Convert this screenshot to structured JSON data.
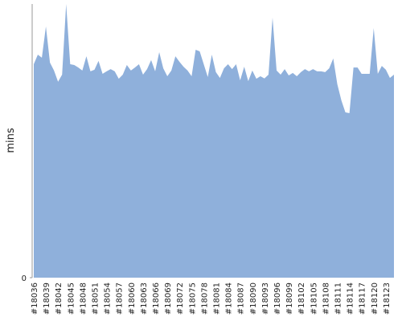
{
  "chart_data": {
    "type": "area",
    "y_label": "mins",
    "color": "#8fb0db",
    "ylim": [
      0,
      100
    ],
    "yticks": [
      0
    ],
    "categories": [
      "#18036",
      null,
      null,
      "#18039",
      null,
      null,
      "#18042",
      null,
      null,
      "#18045",
      null,
      null,
      "#18048",
      null,
      null,
      "#18051",
      null,
      null,
      "#18054",
      null,
      null,
      "#18057",
      null,
      null,
      "#18060",
      null,
      null,
      "#18063",
      null,
      null,
      "#18066",
      null,
      null,
      "#18069",
      null,
      null,
      "#18072",
      null,
      null,
      "#18075",
      null,
      null,
      "#18078",
      null,
      null,
      "#18081",
      null,
      null,
      "#18084",
      null,
      null,
      "#18087",
      null,
      null,
      "#18090",
      null,
      null,
      "#18093",
      null,
      null,
      "#18096",
      null,
      null,
      "#18099",
      null,
      null,
      "#18102",
      null,
      null,
      "#18105",
      null,
      null,
      "#18108",
      null,
      null,
      "#18111",
      null,
      null,
      "#18114",
      null,
      null,
      "#18117",
      null,
      null,
      "#18120",
      null,
      null,
      "#18123",
      null,
      null
    ],
    "values": [
      78,
      81.5,
      80.4,
      91.8,
      78.6,
      75.7,
      71.6,
      74.2,
      100,
      78,
      77.7,
      76.8,
      75.7,
      80.9,
      75.4,
      76,
      79.2,
      74.5,
      75.4,
      76.2,
      75.4,
      72.7,
      74.2,
      77.7,
      75.7,
      76.8,
      78,
      74.2,
      76.2,
      79.5,
      75.4,
      82.4,
      76.5,
      73.6,
      75.7,
      80.9,
      78.9,
      77.1,
      75.7,
      73.6,
      83.3,
      82.7,
      78,
      73.3,
      81.5,
      75.1,
      73,
      76.5,
      78,
      76.2,
      78,
      72.1,
      77.1,
      71.8,
      75.7,
      72.7,
      73.6,
      72.8,
      74.2,
      95,
      75.7,
      74.2,
      76.2,
      73.9,
      74.8,
      73.6,
      75.1,
      76.2,
      75.4,
      76.2,
      75.4,
      75.4,
      75.1,
      76.5,
      80.1,
      70.7,
      64.8,
      60.4,
      60.1,
      76.8,
      76.8,
      74.5,
      74.5,
      74.5,
      91.2,
      74.5,
      77.4,
      76,
      73,
      74.2
    ]
  }
}
